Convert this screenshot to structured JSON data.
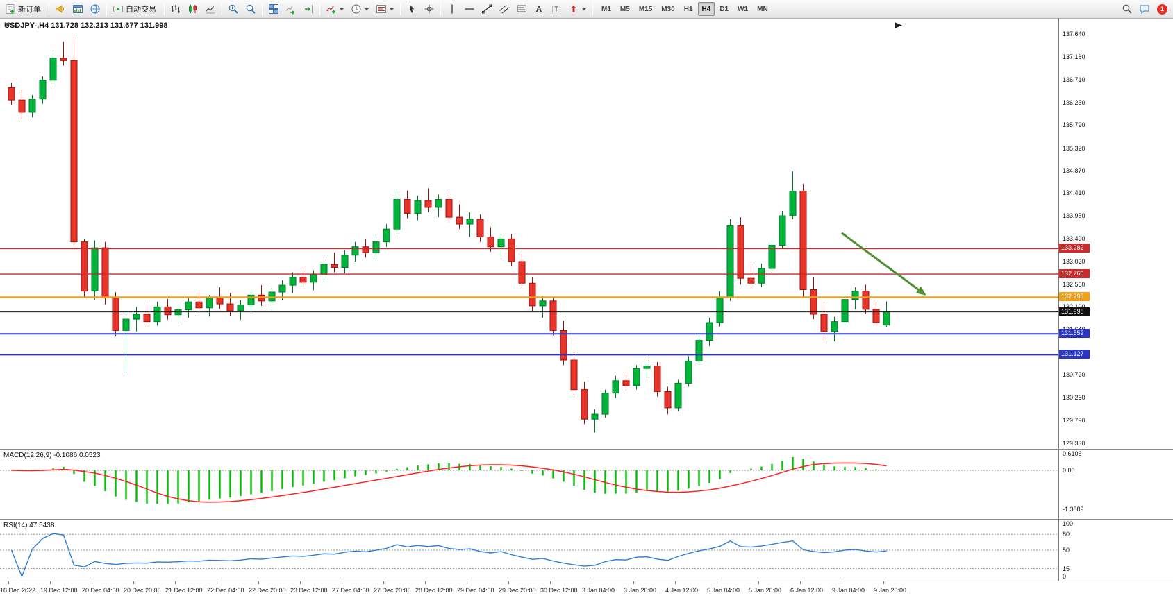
{
  "toolbar": {
    "new_order": "新订单",
    "autotrade": "自动交易",
    "timeframes": [
      "M1",
      "M5",
      "M15",
      "M30",
      "H1",
      "H4",
      "D1",
      "W1",
      "MN"
    ],
    "active_timeframe": "H4",
    "notification_count": "1"
  },
  "chart_data": {
    "type": "candlestick",
    "title": "USDJPY-,H4 131.728 132.213 131.677 131.998",
    "symbol": "USDJPY-",
    "period": "H4",
    "ohlc_display": {
      "open": "131.728",
      "high": "132.213",
      "low": "131.677",
      "close": "131.998"
    },
    "current_price": 131.998,
    "colors": {
      "up": "#00b43c",
      "up_border": "#007a28",
      "down": "#e8352c",
      "down_border": "#9c120c",
      "macd_hist": "#00c000",
      "macd_signal": "#ff2020",
      "rsi_line": "#2f7ed8"
    },
    "price_axis": [
      "137.640",
      "137.180",
      "136.710",
      "136.250",
      "135.790",
      "135.320",
      "134.870",
      "134.410",
      "133.950",
      "133.490",
      "133.020",
      "132.560",
      "132.100",
      "131.640",
      "131.180",
      "130.720",
      "130.260",
      "129.790",
      "129.330"
    ],
    "date_labels": [
      "18 Dec 2022",
      "19 Dec 12:00",
      "20 Dec 04:00",
      "20 Dec 20:00",
      "21 Dec 12:00",
      "22 Dec 04:00",
      "22 Dec 20:00",
      "23 Dec 12:00",
      "27 Dec 04:00",
      "27 Dec 20:00",
      "28 Dec 12:00",
      "29 Dec 04:00",
      "29 Dec 20:00",
      "30 Dec 12:00",
      "3 Jan 04:00",
      "3 Jan 20:00",
      "4 Jan 12:00",
      "5 Jan 04:00",
      "5 Jan 20:00",
      "6 Jan 12:00",
      "9 Jan 04:00",
      "9 Jan 20:00"
    ],
    "hlines": [
      {
        "price": 133.282,
        "label": "133.282",
        "color": "#cc2a2a",
        "width": 1.3
      },
      {
        "price": 132.766,
        "label": "132.766",
        "color": "#cc2a2a",
        "width": 1.3
      },
      {
        "price": 132.295,
        "label": "132.295",
        "color": "#f0a018",
        "width": 2.4
      },
      {
        "price": 131.998,
        "label": "131.998",
        "color": "#101010",
        "width": 1
      },
      {
        "price": 131.552,
        "label": "131.552",
        "color": "#2a35c8",
        "width": 2
      },
      {
        "price": 131.127,
        "label": "131.127",
        "color": "#2a35c8",
        "width": 2
      }
    ],
    "trend_arrow": {
      "from_index": 80,
      "from_price": 133.6,
      "to_index": 88,
      "to_price": 132.35,
      "color": "#4d8f2f"
    },
    "indicators": {
      "macd": {
        "label": "MACD(12,26,9) -0.1086 0.0523",
        "params": [
          12,
          26,
          9
        ],
        "values": [
          -0.1086,
          0.0523
        ],
        "axis_labels": [
          "0.6106",
          "0.00",
          "-1.3889"
        ]
      },
      "rsi": {
        "label": "RSI(14) 47.5438",
        "period": 14,
        "value": 47.5438,
        "axis_labels": [
          "100",
          "80",
          "50",
          "15",
          "0"
        ],
        "levels": [
          80,
          50,
          15
        ]
      }
    },
    "candles": [
      [
        136.55,
        136.65,
        136.2,
        136.3
      ],
      [
        136.3,
        136.5,
        135.92,
        136.05
      ],
      [
        136.05,
        136.4,
        135.95,
        136.32
      ],
      [
        136.32,
        136.78,
        136.22,
        136.7
      ],
      [
        136.7,
        137.25,
        136.62,
        137.15
      ],
      [
        137.15,
        137.48,
        137.0,
        137.1
      ],
      [
        137.1,
        137.58,
        133.3,
        133.42
      ],
      [
        133.42,
        133.48,
        132.3,
        132.42
      ],
      [
        132.42,
        133.45,
        132.25,
        133.3
      ],
      [
        133.3,
        133.42,
        132.15,
        132.28
      ],
      [
        132.28,
        132.4,
        131.5,
        131.62
      ],
      [
        131.62,
        131.95,
        130.76,
        131.85
      ],
      [
        131.85,
        132.1,
        131.6,
        131.95
      ],
      [
        131.95,
        132.15,
        131.7,
        131.8
      ],
      [
        131.8,
        132.2,
        131.72,
        132.1
      ],
      [
        132.1,
        132.26,
        131.84,
        131.94
      ],
      [
        131.94,
        132.14,
        131.76,
        132.04
      ],
      [
        132.04,
        132.3,
        131.88,
        132.2
      ],
      [
        132.2,
        132.44,
        131.98,
        132.08
      ],
      [
        132.08,
        132.34,
        131.9,
        132.28
      ],
      [
        132.28,
        132.5,
        132.06,
        132.16
      ],
      [
        132.16,
        132.38,
        131.92,
        132.02
      ],
      [
        132.02,
        132.24,
        131.84,
        132.14
      ],
      [
        132.14,
        132.4,
        132.0,
        132.34
      ],
      [
        132.34,
        132.54,
        132.12,
        132.22
      ],
      [
        132.22,
        132.48,
        132.08,
        132.4
      ],
      [
        132.4,
        132.64,
        132.24,
        132.54
      ],
      [
        132.54,
        132.8,
        132.38,
        132.7
      ],
      [
        132.7,
        132.9,
        132.5,
        132.6
      ],
      [
        132.6,
        132.84,
        132.44,
        132.76
      ],
      [
        132.76,
        133.06,
        132.6,
        132.96
      ],
      [
        132.96,
        133.2,
        132.8,
        132.9
      ],
      [
        132.9,
        133.25,
        132.78,
        133.15
      ],
      [
        133.15,
        133.42,
        133.02,
        133.32
      ],
      [
        133.32,
        133.48,
        133.1,
        133.2
      ],
      [
        133.2,
        133.52,
        133.06,
        133.42
      ],
      [
        133.42,
        133.78,
        133.32,
        133.68
      ],
      [
        133.68,
        134.44,
        133.58,
        134.28
      ],
      [
        134.28,
        134.46,
        133.9,
        134.0
      ],
      [
        134.0,
        134.36,
        133.86,
        134.26
      ],
      [
        134.26,
        134.51,
        134.02,
        134.12
      ],
      [
        134.12,
        134.38,
        133.92,
        134.28
      ],
      [
        134.28,
        134.44,
        133.82,
        133.92
      ],
      [
        133.92,
        134.18,
        133.68,
        133.78
      ],
      [
        133.78,
        134.02,
        133.52,
        133.88
      ],
      [
        133.88,
        133.98,
        133.42,
        133.52
      ],
      [
        133.52,
        133.72,
        133.22,
        133.32
      ],
      [
        133.32,
        133.58,
        133.12,
        133.48
      ],
      [
        133.48,
        133.58,
        132.92,
        133.02
      ],
      [
        133.02,
        133.18,
        132.48,
        132.58
      ],
      [
        132.58,
        132.7,
        132.02,
        132.12
      ],
      [
        132.12,
        132.32,
        131.88,
        132.22
      ],
      [
        132.22,
        132.3,
        131.52,
        131.62
      ],
      [
        131.62,
        131.82,
        130.92,
        131.02
      ],
      [
        131.02,
        131.22,
        130.32,
        130.42
      ],
      [
        130.42,
        130.58,
        129.72,
        129.82
      ],
      [
        129.82,
        130.02,
        129.55,
        129.92
      ],
      [
        129.92,
        130.42,
        129.85,
        130.35
      ],
      [
        130.35,
        130.7,
        130.25,
        130.6
      ],
      [
        130.6,
        130.76,
        130.4,
        130.5
      ],
      [
        130.5,
        130.92,
        130.42,
        130.85
      ],
      [
        130.85,
        131.02,
        130.65,
        130.9
      ],
      [
        130.9,
        130.98,
        130.28,
        130.38
      ],
      [
        130.38,
        130.48,
        129.92,
        130.05
      ],
      [
        130.05,
        130.62,
        129.98,
        130.55
      ],
      [
        130.55,
        131.1,
        130.48,
        131.0
      ],
      [
        131.0,
        131.52,
        130.92,
        131.42
      ],
      [
        131.42,
        131.88,
        131.3,
        131.78
      ],
      [
        131.78,
        132.42,
        131.7,
        132.3
      ],
      [
        132.3,
        133.88,
        132.22,
        133.75
      ],
      [
        133.75,
        133.92,
        132.55,
        132.68
      ],
      [
        132.68,
        133.02,
        132.48,
        132.58
      ],
      [
        132.58,
        132.98,
        132.5,
        132.88
      ],
      [
        132.88,
        133.45,
        132.8,
        133.35
      ],
      [
        133.35,
        134.05,
        133.28,
        133.95
      ],
      [
        133.95,
        134.85,
        133.88,
        134.45
      ],
      [
        134.45,
        134.6,
        132.3,
        132.45
      ],
      [
        132.45,
        132.7,
        131.85,
        131.95
      ],
      [
        131.95,
        132.15,
        131.42,
        131.6
      ],
      [
        131.6,
        131.9,
        131.4,
        131.8
      ],
      [
        131.8,
        132.35,
        131.72,
        132.25
      ],
      [
        132.25,
        132.5,
        132.05,
        132.42
      ],
      [
        132.42,
        132.55,
        131.95,
        132.05
      ],
      [
        132.05,
        132.2,
        131.68,
        131.78
      ],
      [
        131.73,
        132.21,
        131.68,
        132.0
      ]
    ]
  }
}
